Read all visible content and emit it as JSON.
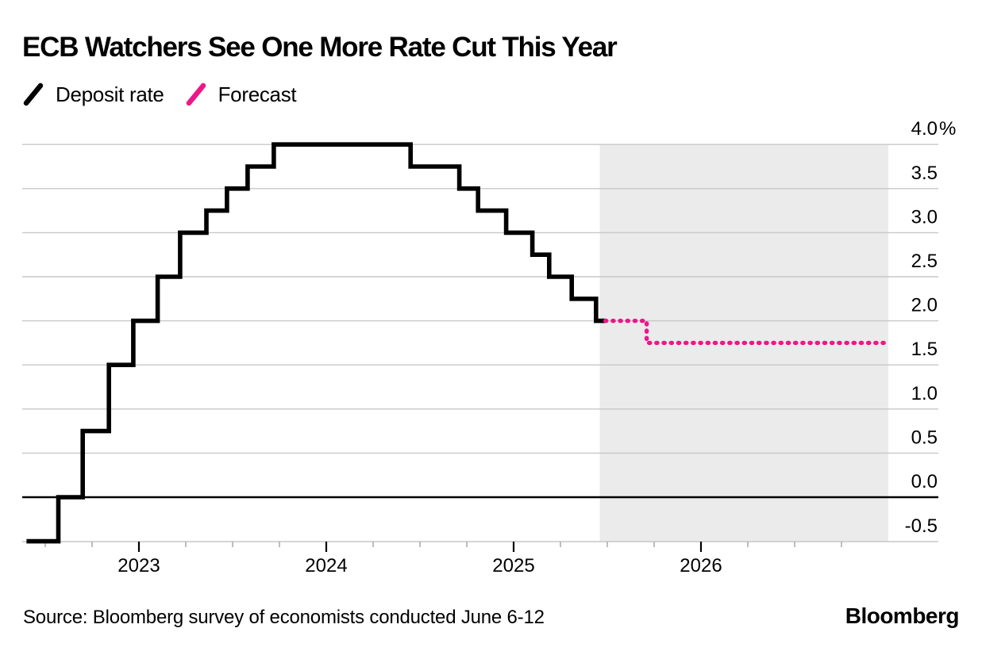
{
  "header": {
    "title": "ECB Watchers See One More Rate Cut This Year"
  },
  "legend": [
    {
      "label": "Deposit rate",
      "color_key": "black",
      "swatch": "slash-icon",
      "style": "solid"
    },
    {
      "label": "Forecast",
      "color_key": "pink",
      "swatch": "slash-icon",
      "style": "dotted"
    }
  ],
  "footer": {
    "source": "Source: Bloomberg survey of economists conducted June 6-12",
    "brand": "Bloomberg"
  },
  "colors": {
    "black": "#000000",
    "pink": "#ed1788",
    "grid": "#c7c7c7",
    "zero_line": "#000000",
    "forecast_bg": "#ebebeb",
    "minor_tick": "#a8a8a8"
  },
  "chart_data": {
    "type": "line",
    "line_style": "step",
    "unit": "%",
    "ylim": [
      -0.5,
      4.0
    ],
    "y_tick_step": 0.5,
    "y_tick_labels": [
      "4.0%",
      "3.5",
      "3.0",
      "2.5",
      "2.0",
      "1.5",
      "1.0",
      "0.5",
      "0.0",
      "-0.5"
    ],
    "x_range_years": [
      2022.36,
      2027.0
    ],
    "x_year_ticks": [
      {
        "year": 2023,
        "label": "2023"
      },
      {
        "year": 2024,
        "label": "2024"
      },
      {
        "year": 2025,
        "label": "2025"
      },
      {
        "year": 2026,
        "label": "2026"
      }
    ],
    "minor_ticks_quarterly": true,
    "grid": true,
    "zero_line": true,
    "legend_position": "top-left",
    "forecast_region": {
      "start_year": 2025.46,
      "end_year": 2027.0
    },
    "series": [
      {
        "name": "Deposit rate",
        "color_key": "black",
        "style": "solid",
        "points_year_rate": [
          [
            2022.4,
            -0.5
          ],
          [
            2022.57,
            0.0
          ],
          [
            2022.7,
            0.75
          ],
          [
            2022.84,
            1.5
          ],
          [
            2022.97,
            2.0
          ],
          [
            2023.1,
            2.5
          ],
          [
            2023.22,
            3.0
          ],
          [
            2023.36,
            3.25
          ],
          [
            2023.47,
            3.5
          ],
          [
            2023.58,
            3.75
          ],
          [
            2023.72,
            4.0
          ],
          [
            2024.45,
            3.75
          ],
          [
            2024.71,
            3.5
          ],
          [
            2024.81,
            3.25
          ],
          [
            2024.96,
            3.0
          ],
          [
            2025.1,
            2.75
          ],
          [
            2025.19,
            2.5
          ],
          [
            2025.31,
            2.25
          ],
          [
            2025.44,
            2.0
          ]
        ],
        "extend_to_year": 2025.49
      },
      {
        "name": "Forecast",
        "color_key": "pink",
        "style": "dotted",
        "points_year_rate": [
          [
            2025.49,
            2.0
          ],
          [
            2025.71,
            1.75
          ]
        ],
        "extend_to_year": 2026.98
      }
    ]
  }
}
